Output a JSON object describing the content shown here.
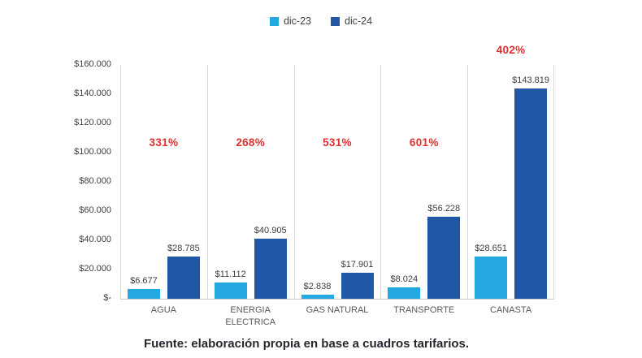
{
  "chart_data": {
    "type": "bar",
    "title": "",
    "xlabel": "",
    "ylabel": "",
    "categories": [
      "AGUA",
      "ENERGIA ELECTRICA",
      "GAS NATURAL",
      "TRANSPORTE",
      "CANASTA"
    ],
    "series": [
      {
        "name": "dic-23",
        "color": "#23a8e1",
        "values": [
          6677,
          11112,
          2838,
          8024,
          28651
        ],
        "data_labels": [
          "$6.677",
          "$11.112",
          "$2.838",
          "$8.024",
          "$28.651"
        ]
      },
      {
        "name": "dic-24",
        "color": "#2157a5",
        "values": [
          28785,
          40905,
          17901,
          56228,
          143819
        ],
        "data_labels": [
          "$28.785",
          "$40.905",
          "$17.901",
          "$56.228",
          "$143.819"
        ]
      }
    ],
    "pct_change_labels": [
      "331%",
      "268%",
      "531%",
      "601%",
      "402%"
    ],
    "pct_color": "#e03030",
    "ylim": [
      0,
      160000
    ],
    "y_ticks": [
      "$160.000",
      "$140.000",
      "$120.000",
      "$100.000",
      "$80.000",
      "$60.000",
      "$40.000",
      "$20.000",
      "$-"
    ],
    "grid": "vertical-category-separators-only",
    "legend_position": "top-center"
  },
  "footer": {
    "source": "Fuente: elaboración propia en base a cuadros tarifarios."
  }
}
